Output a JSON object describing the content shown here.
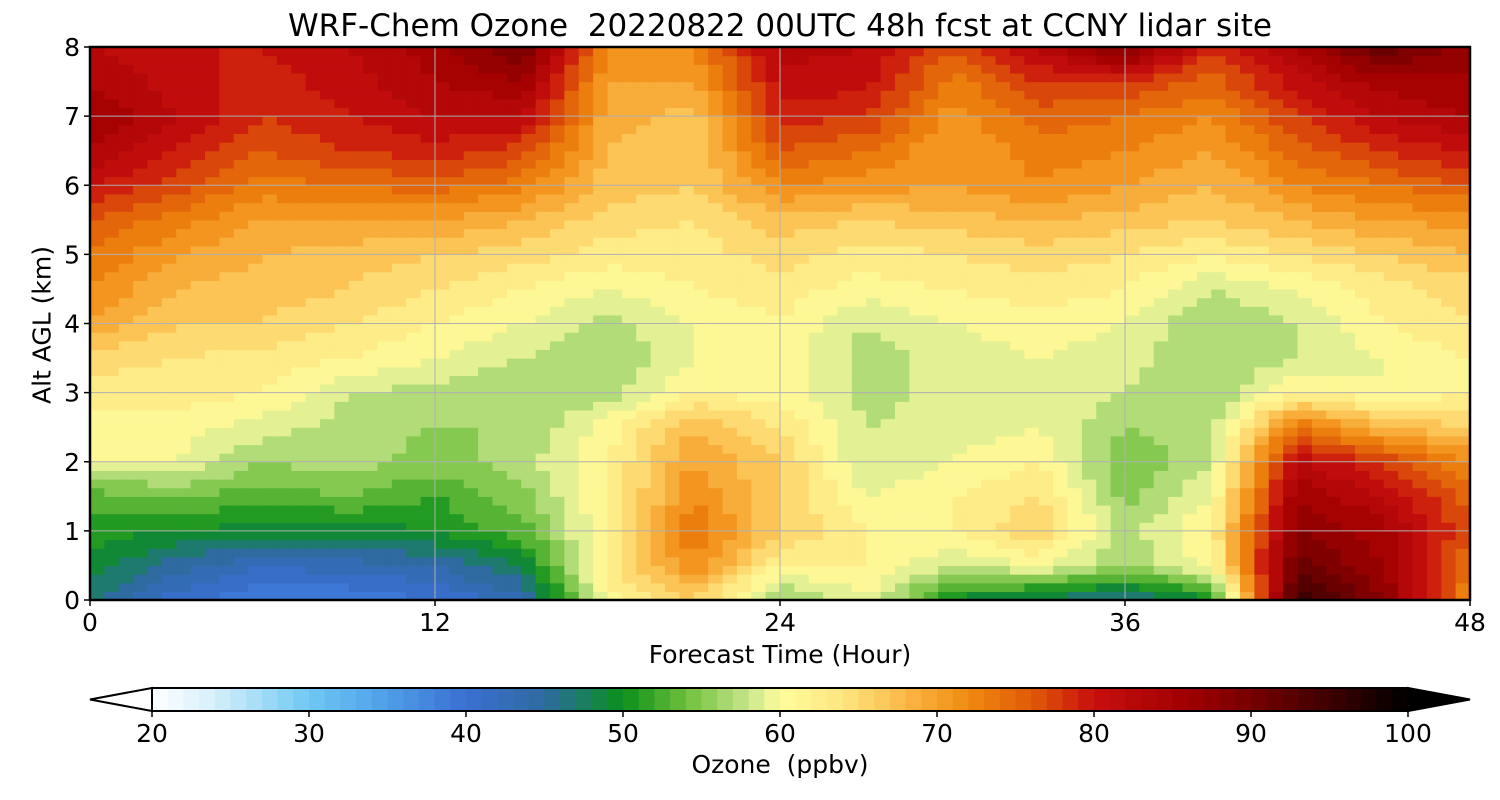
{
  "chart_data": {
    "type": "heatmap",
    "title": "WRF-Chem Ozone  20220822 00UTC 48h fcst at CCNY lidar site",
    "xlabel": "Forecast Time (Hour)",
    "ylabel": "Alt AGL (km)",
    "xlim": [
      0,
      48
    ],
    "ylim": [
      0,
      8
    ],
    "x_ticks": [
      "0",
      "12",
      "24",
      "36",
      "48"
    ],
    "y_ticks": [
      "0",
      "1",
      "2",
      "3",
      "4",
      "5",
      "6",
      "7",
      "8"
    ],
    "grid": true,
    "x": [
      0,
      3,
      6,
      9,
      12,
      15,
      18,
      21,
      24,
      27,
      30,
      33,
      36,
      39,
      42,
      45,
      48
    ],
    "y": [
      0,
      0.5,
      1,
      1.5,
      2,
      2.5,
      3,
      3.5,
      4,
      4.5,
      5,
      5.5,
      6,
      6.5,
      7,
      7.5,
      8
    ],
    "z": [
      [
        47,
        41,
        38,
        38,
        40,
        43,
        61,
        66,
        55,
        60,
        49,
        47,
        45,
        49,
        96,
        88,
        72
      ],
      [
        49,
        45,
        42,
        43,
        44,
        48,
        63,
        72,
        62,
        62,
        58,
        60,
        56,
        61,
        91,
        86,
        74
      ],
      [
        51,
        50,
        49,
        49,
        50,
        53,
        62,
        74,
        66,
        62,
        62,
        66,
        57,
        62,
        88,
        85,
        76
      ],
      [
        53,
        54,
        53,
        54,
        52,
        55,
        62,
        72,
        66,
        60,
        62,
        64,
        55,
        60,
        86,
        82,
        75
      ],
      [
        60,
        60,
        56,
        57,
        55,
        57,
        62,
        70,
        66,
        58,
        60,
        62,
        54,
        58,
        82,
        78,
        72
      ],
      [
        61,
        61,
        59,
        57,
        56,
        56,
        61,
        68,
        64,
        58,
        59,
        60,
        56,
        57,
        74,
        68,
        66
      ],
      [
        63,
        63,
        62,
        58,
        57,
        56,
        57,
        62,
        61,
        57,
        59,
        60,
        58,
        56,
        62,
        60,
        62
      ],
      [
        65,
        64,
        63,
        62,
        60,
        58,
        56,
        60,
        61,
        57,
        59,
        60,
        59,
        56,
        58,
        60,
        62
      ],
      [
        70,
        66,
        66,
        64,
        62,
        60,
        57,
        60,
        62,
        58,
        60,
        61,
        60,
        56,
        58,
        62,
        64
      ],
      [
        72,
        68,
        67,
        66,
        64,
        62,
        60,
        62,
        63,
        61,
        62,
        63,
        62,
        58,
        60,
        63,
        65
      ],
      [
        74,
        70,
        68,
        67,
        66,
        65,
        63,
        63,
        65,
        63,
        64,
        65,
        64,
        62,
        64,
        66,
        68
      ],
      [
        76,
        73,
        70,
        70,
        70,
        68,
        65,
        64,
        67,
        66,
        67,
        68,
        67,
        66,
        68,
        70,
        71
      ],
      [
        80,
        77,
        73,
        74,
        75,
        73,
        67,
        66,
        72,
        71,
        70,
        72,
        70,
        68,
        72,
        74,
        76
      ],
      [
        84,
        80,
        76,
        78,
        79,
        77,
        68,
        66,
        76,
        74,
        70,
        73,
        72,
        70,
        75,
        78,
        80
      ],
      [
        86,
        82,
        78,
        80,
        82,
        82,
        69,
        67,
        79,
        78,
        71,
        75,
        74,
        72,
        78,
        82,
        84
      ],
      [
        84,
        81,
        79,
        81,
        84,
        86,
        70,
        70,
        81,
        81,
        73,
        78,
        78,
        75,
        81,
        85,
        86
      ],
      [
        82,
        80,
        80,
        82,
        85,
        90,
        72,
        72,
        83,
        82,
        76,
        82,
        90,
        78,
        84,
        92,
        86
      ]
    ],
    "colorbar": {
      "label": "Ozone  (ppbv)",
      "min": 20,
      "max": 100,
      "extend": "both",
      "ticks": [
        "20",
        "30",
        "40",
        "50",
        "60",
        "70",
        "80",
        "90",
        "100"
      ],
      "colors": {
        "20": "#ffffff",
        "24": "#d6effb",
        "30": "#6ec8f4",
        "35": "#4f9ee8",
        "40": "#3a6fd2",
        "45": "#2f6aa0",
        "47": "#1e7a6e",
        "50": "#0a8f1a",
        "54": "#6fbf3c",
        "58": "#c8e68c",
        "60": "#fefc9c",
        "64": "#fde680",
        "68": "#fbb746",
        "72": "#f08a10",
        "76": "#e05a08",
        "80": "#c80e0e",
        "86": "#a00000",
        "92": "#600000",
        "100": "#000000"
      }
    }
  }
}
